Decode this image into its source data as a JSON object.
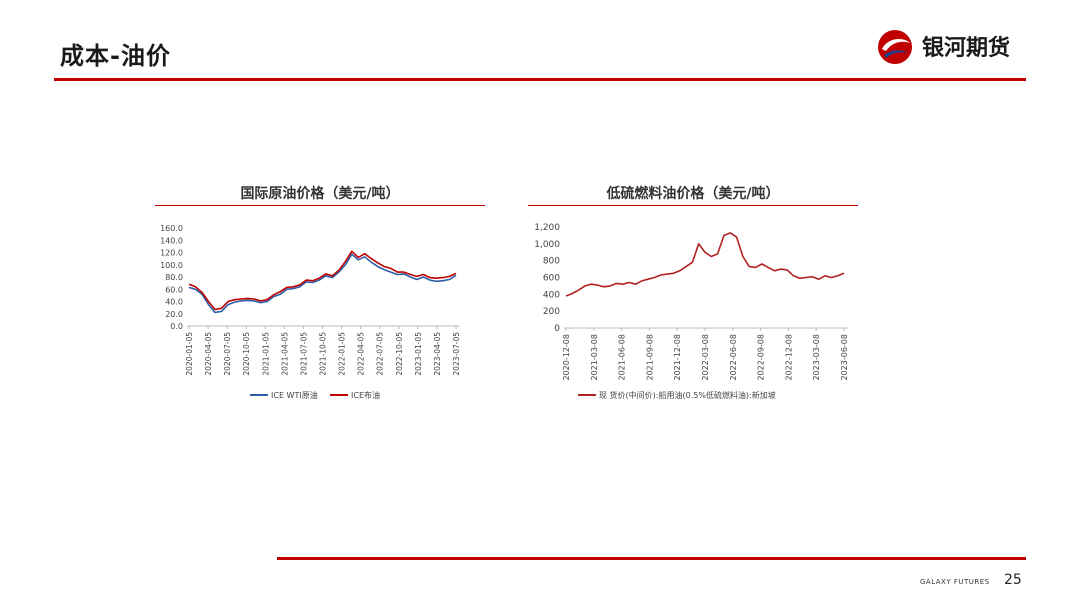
{
  "page": {
    "title": "成本-油价",
    "logo_text": "银河期货",
    "footer_brand": "GALAXY FUTURES",
    "page_number": "25"
  },
  "colors": {
    "accent": "#c00000",
    "wti": "#2e5fa7",
    "brent": "#c00000",
    "fuel": "#b22222"
  },
  "chart_data": [
    {
      "type": "line",
      "title": "国际原油价格（美元/吨）",
      "ylim": [
        0,
        160
      ],
      "yticks": [
        "0.0",
        "20.0",
        "40.0",
        "60.0",
        "80.0",
        "100.0",
        "120.0",
        "140.0",
        "160.0"
      ],
      "xlabels": [
        "2020-01-05",
        "2020-04-05",
        "2020-07-05",
        "2020-10-05",
        "2021-01-05",
        "2021-04-05",
        "2021-07-05",
        "2021-10-05",
        "2022-01-05",
        "2022-04-05",
        "2022-07-05",
        "2022-10-05",
        "2023-01-05",
        "2023-04-05",
        "2023-07-05"
      ],
      "series": [
        {
          "name": "ICE WTI原油",
          "values": [
            63,
            60,
            52,
            35,
            22,
            24,
            35,
            39,
            41,
            42,
            41,
            38,
            40,
            48,
            52,
            60,
            61,
            64,
            72,
            71,
            75,
            82,
            79,
            88,
            100,
            117,
            108,
            113,
            104,
            97,
            92,
            88,
            84,
            85,
            80,
            76,
            80,
            75,
            73,
            74,
            76,
            83
          ]
        },
        {
          "name": "ICE布油",
          "values": [
            68,
            64,
            55,
            40,
            27,
            29,
            40,
            43,
            44,
            45,
            44,
            41,
            43,
            51,
            56,
            63,
            64,
            67,
            75,
            74,
            78,
            85,
            82,
            91,
            105,
            122,
            112,
            118,
            110,
            103,
            97,
            94,
            88,
            88,
            84,
            81,
            84,
            79,
            78,
            79,
            81,
            86
          ]
        }
      ]
    },
    {
      "type": "line",
      "title": "低硫燃料油价格（美元/吨）",
      "ylim": [
        0,
        1200
      ],
      "yticks": [
        "0",
        "200",
        "400",
        "600",
        "800",
        "1,000",
        "1,200"
      ],
      "xlabels": [
        "2020-12-08",
        "2021-03-08",
        "2021-06-08",
        "2021-09-08",
        "2021-12-08",
        "2022-03-08",
        "2022-06-08",
        "2022-09-08",
        "2022-12-08",
        "2023-03-08",
        "2023-06-08"
      ],
      "series": [
        {
          "name": "现 货价(中间价):船用油(0.5%低硫燃料油):新加坡",
          "values": [
            380,
            410,
            450,
            500,
            520,
            510,
            490,
            500,
            530,
            520,
            540,
            520,
            560,
            580,
            600,
            630,
            640,
            650,
            680,
            730,
            780,
            1000,
            900,
            850,
            880,
            1100,
            1130,
            1080,
            850,
            730,
            720,
            760,
            720,
            680,
            700,
            690,
            620,
            590,
            600,
            610,
            580,
            620,
            600,
            620,
            650
          ]
        }
      ]
    }
  ]
}
